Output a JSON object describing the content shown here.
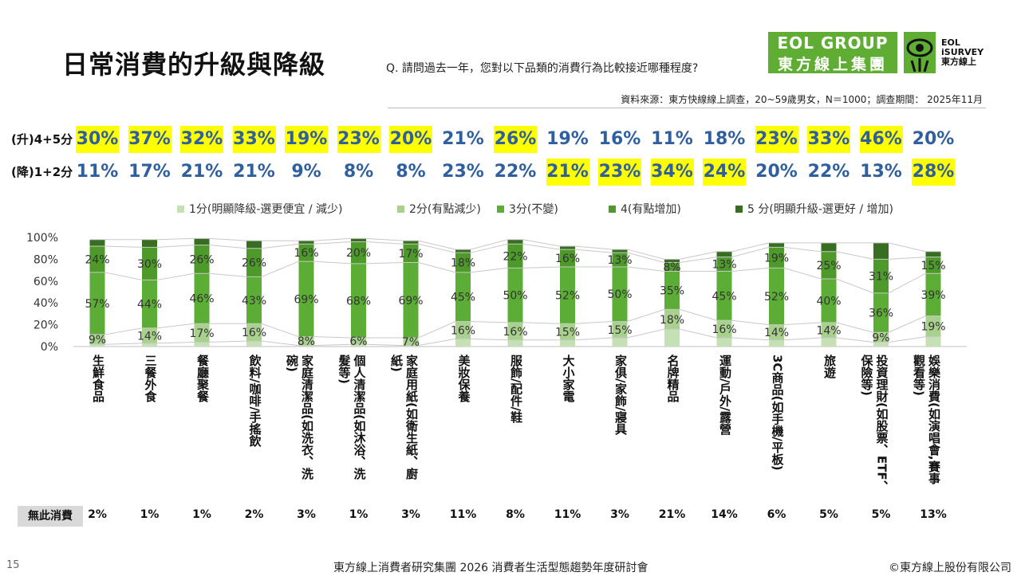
{
  "header": {
    "title": "日常消費的升級與降級",
    "question": "Q. 請問過去一年，您對以下品類的消費行為比較接近哪種程度?",
    "source": "資料來源：東方快線線上調查，20~59歲男女，N＝1000；調查期間： 2025年11月"
  },
  "logo": {
    "group_line1": "EOL GROUP",
    "group_line2": "東方線上集團",
    "survey_line1": "EOL",
    "survey_line2": "iSURVEY",
    "survey_line3": "東方線上",
    "brand_green": "#5fad32"
  },
  "summary": {
    "up_label": "(升)4+5分",
    "down_label": "(降)1+2分",
    "up": [
      "30%",
      "37%",
      "32%",
      "33%",
      "19%",
      "23%",
      "20%",
      "21%",
      "26%",
      "19%",
      "16%",
      "11%",
      "18%",
      "23%",
      "33%",
      "46%",
      "20%"
    ],
    "up_highlight": [
      true,
      true,
      true,
      true,
      true,
      true,
      true,
      false,
      true,
      false,
      false,
      false,
      false,
      true,
      true,
      true,
      false
    ],
    "down": [
      "11%",
      "17%",
      "21%",
      "21%",
      "9%",
      "8%",
      "8%",
      "23%",
      "22%",
      "21%",
      "23%",
      "34%",
      "24%",
      "20%",
      "22%",
      "13%",
      "28%"
    ],
    "down_highlight": [
      false,
      false,
      false,
      false,
      false,
      false,
      false,
      false,
      false,
      true,
      true,
      true,
      true,
      false,
      false,
      false,
      true
    ],
    "highlight_color": "#ffff00",
    "text_color": "#2f5f9e"
  },
  "legend": [
    "1分(明顯降級-選更便宜 / 減少)",
    "2分(有點減少)",
    "3分(不變)",
    "4(有點增加)",
    "5 分(明顯升級-選更好 / 增加)"
  ],
  "chart_data": {
    "type": "bar",
    "stacked": true,
    "ylim": [
      0,
      100
    ],
    "yticks": [
      "0%",
      "20%",
      "40%",
      "60%",
      "80%",
      "100%"
    ],
    "categories": [
      "生鮮食品",
      "三餐外食",
      "餐廳聚餐",
      "飲料/咖啡/手搖飲",
      "家庭清潔品(如洗衣、洗碗)",
      "個人清潔品(如沐浴、洗髮等)",
      "家庭用紙(如衛生紙、廚紙)",
      "美妝保養",
      "服飾/配件/鞋",
      "大小家電",
      "家俱/家飾/寢具",
      "名牌精品",
      "運動/戶外/露營",
      "3C商品(如手機/平板)",
      "旅遊",
      "投資理財(如股票、ETF、保險等)",
      "娛樂消費(如演唱會,賽事觀看等)"
    ],
    "label_lines": [
      [
        "生鮮食品"
      ],
      [
        "三餐外食"
      ],
      [
        "餐廳聚餐"
      ],
      [
        "飲料/咖啡/手搖飲"
      ],
      [
        "家庭清潔品(如洗衣、洗",
        "碗)"
      ],
      [
        "個人清潔品(如沐浴、洗",
        "髮等)"
      ],
      [
        "家庭用紙(如衛生紙、廚",
        "紙)"
      ],
      [
        "美妝保養"
      ],
      [
        "服飾/配件/鞋"
      ],
      [
        "大小家電"
      ],
      [
        "家俱/家飾/寢具"
      ],
      [
        "名牌精品"
      ],
      [
        "運動/戶外/露營"
      ],
      [
        "3C商品(如手機/平板)"
      ],
      [
        "旅遊"
      ],
      [
        "投資理財(如股票、ETF、",
        "保險等)"
      ],
      [
        "娛樂消費(如演唱會,賽事",
        "觀看等)"
      ]
    ],
    "series": [
      {
        "name": "1分(明顯降級-選更便宜 / 減少)",
        "color": "#c5e0b4",
        "values": [
          2,
          3,
          4,
          5,
          1,
          2,
          1,
          7,
          6,
          6,
          8,
          16,
          8,
          6,
          8,
          4,
          9
        ]
      },
      {
        "name": "2分(有點減少)",
        "color": "#a9d18e",
        "values": [
          9,
          14,
          17,
          16,
          8,
          6,
          7,
          16,
          16,
          15,
          15,
          18,
          16,
          14,
          14,
          9,
          19
        ]
      },
      {
        "name": "3分(不變)",
        "color": "#5cad35",
        "values": [
          57,
          44,
          46,
          43,
          69,
          68,
          69,
          45,
          50,
          52,
          50,
          35,
          45,
          52,
          40,
          36,
          39
        ]
      },
      {
        "name": "4(有點增加)",
        "color": "#4d9a2a",
        "values": [
          24,
          30,
          26,
          26,
          16,
          20,
          17,
          18,
          22,
          16,
          13,
          8,
          13,
          19,
          25,
          31,
          15
        ]
      },
      {
        "name": "5 分(明顯升級-選更好 / 增加)",
        "color": "#376e22",
        "values": [
          6,
          7,
          6,
          7,
          3,
          3,
          3,
          3,
          4,
          3,
          3,
          3,
          5,
          4,
          8,
          15,
          5
        ]
      }
    ],
    "data_labels": [
      [
        "",
        "",
        "",
        "",
        "",
        "",
        "",
        "",
        "",
        "",
        "",
        "",
        "",
        "",
        "",
        "",
        ""
      ],
      [
        "9%",
        "14%",
        "17%",
        "16%",
        "8%",
        "6%",
        "7%",
        "16%",
        "16%",
        "15%",
        "15%",
        "18%",
        "16%",
        "14%",
        "14%",
        "9%",
        "19%"
      ],
      [
        "57%",
        "44%",
        "46%",
        "43%",
        "69%",
        "68%",
        "69%",
        "45%",
        "50%",
        "52%",
        "50%",
        "35%",
        "45%",
        "52%",
        "40%",
        "36%",
        "39%"
      ],
      [
        "24%",
        "30%",
        "26%",
        "26%",
        "16%",
        "20%",
        "17%",
        "18%",
        "22%",
        "16%",
        "13%",
        "8%",
        "13%",
        "19%",
        "25%",
        "31%",
        "15%"
      ],
      [
        "",
        "",
        "",
        "",
        "",
        "",
        "",
        "",
        "",
        "",
        "",
        "",
        "",
        "",
        "",
        "",
        ""
      ]
    ]
  },
  "no_consumption": {
    "label": "無此消費",
    "values": [
      "2%",
      "1%",
      "1%",
      "2%",
      "3%",
      "1%",
      "3%",
      "11%",
      "8%",
      "11%",
      "3%",
      "21%",
      "14%",
      "6%",
      "5%",
      "5%",
      "13%"
    ]
  },
  "footer": {
    "page": "15",
    "event": "東方線上消費者研究集團 2026 消費者生活型態趨勢年度研討會",
    "copyright": "©東方線上股份有限公司"
  }
}
